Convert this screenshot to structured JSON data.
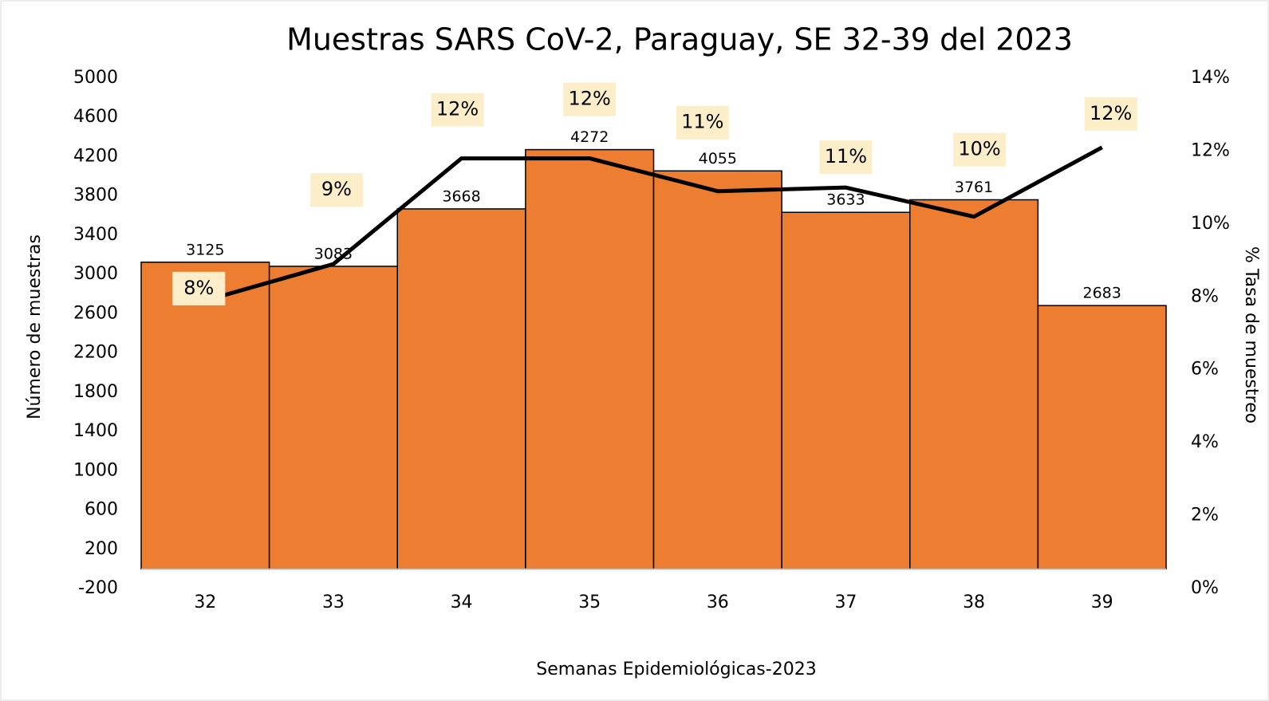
{
  "chart_data": {
    "type": "combo",
    "title": "Muestras SARS CoV-2, Paraguay, SE 32-39 del 2023",
    "xlabel": "Semanas Epidemiológicas-2023",
    "ylabel": "Número de muestras",
    "y2label": "% Tasa de muestreo",
    "categories": [
      "32",
      "33",
      "34",
      "35",
      "36",
      "37",
      "38",
      "39"
    ],
    "ylim": [
      -200,
      5000
    ],
    "yticks": [
      -200,
      200,
      600,
      1000,
      1400,
      1800,
      2200,
      2600,
      3000,
      3400,
      3800,
      4200,
      4600,
      5000
    ],
    "y2lim": [
      0,
      14
    ],
    "y2ticks": [
      {
        "value": 0,
        "label": "0%"
      },
      {
        "value": 2,
        "label": "2%"
      },
      {
        "value": 4,
        "label": "4%"
      },
      {
        "value": 6,
        "label": "6%"
      },
      {
        "value": 8,
        "label": "8%"
      },
      {
        "value": 10,
        "label": "10%"
      },
      {
        "value": 12,
        "label": "12%"
      },
      {
        "value": 14,
        "label": "14%"
      }
    ],
    "series": [
      {
        "type": "bar",
        "color": "#ed7d31",
        "values": [
          3125,
          3083,
          3668,
          4272,
          4055,
          3633,
          3761,
          2683
        ]
      },
      {
        "type": "line",
        "axis": "y2",
        "color": "#000000",
        "values": [
          7.9,
          8.9,
          11.8,
          11.8,
          10.9,
          11.0,
          10.2,
          12.1
        ],
        "value_labels": [
          "8%",
          "9%",
          "12%",
          "12%",
          "11%",
          "11%",
          "10%",
          "12%"
        ]
      }
    ]
  }
}
